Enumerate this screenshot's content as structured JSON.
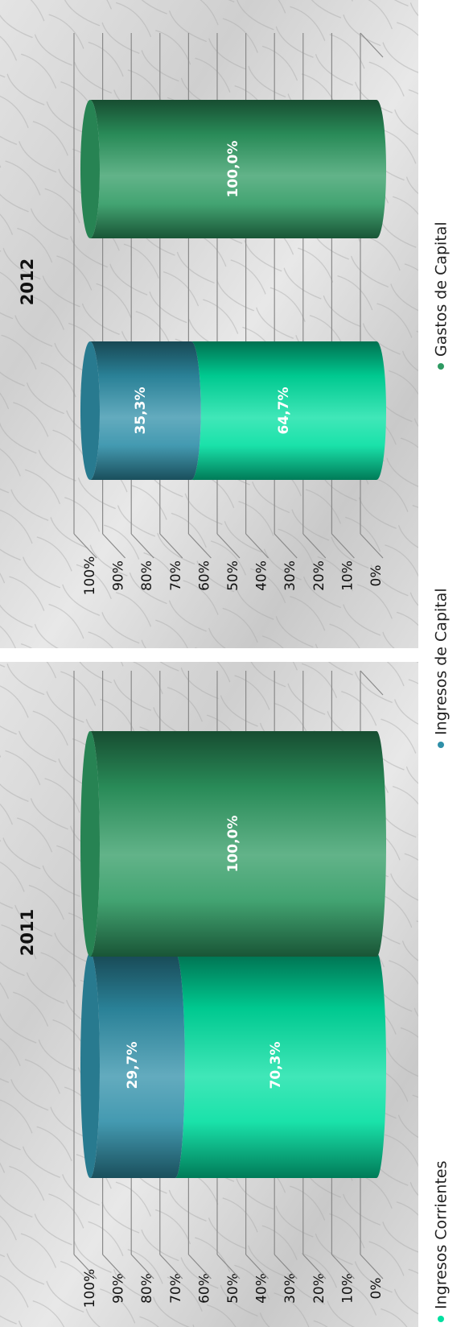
{
  "chart_data": [
    {
      "type": "bar",
      "stacked": true,
      "title": "2011",
      "categories": [
        null,
        null
      ],
      "series": [
        {
          "name": "Ingresos Corrientes",
          "color": "#00dfa0",
          "values": [
            70.3,
            null
          ],
          "value_labels": [
            "70,3%",
            null
          ]
        },
        {
          "name": "Ingresos de Capital",
          "color": "#2f8fa8",
          "values": [
            29.7,
            null
          ],
          "value_labels": [
            "29,7%",
            null
          ]
        },
        {
          "name": "Gastos de Capital",
          "color": "#2e9a62",
          "values": [
            null,
            100.0
          ],
          "value_labels": [
            null,
            "100,0%"
          ]
        }
      ],
      "ylim": [
        0,
        100
      ],
      "yticks": [
        {
          "value": 0,
          "label": "0%"
        },
        {
          "value": 10,
          "label": "10%"
        },
        {
          "value": 20,
          "label": "20%"
        },
        {
          "value": 30,
          "label": "30%"
        },
        {
          "value": 40,
          "label": "40%"
        },
        {
          "value": 50,
          "label": "50%"
        },
        {
          "value": 60,
          "label": "60%"
        },
        {
          "value": 70,
          "label": "70%"
        },
        {
          "value": 80,
          "label": "80%"
        },
        {
          "value": 90,
          "label": "90%"
        },
        {
          "value": 100,
          "label": "100%"
        }
      ],
      "grid": true,
      "legend": "bottom"
    },
    {
      "type": "bar",
      "stacked": true,
      "title": "2012",
      "categories": [
        null,
        null
      ],
      "series": [
        {
          "name": "Ingresos Corrientes",
          "color": "#00dfa0",
          "values": [
            64.7,
            null
          ],
          "value_labels": [
            "64,7%",
            null
          ]
        },
        {
          "name": "Ingresos de Capital",
          "color": "#2f8fa8",
          "values": [
            35.3,
            null
          ],
          "value_labels": [
            "35,3%",
            null
          ]
        },
        {
          "name": "Gastos de Capital",
          "color": "#2e9a62",
          "values": [
            null,
            100.0
          ],
          "value_labels": [
            null,
            "100,0%"
          ]
        }
      ],
      "ylim": [
        0,
        100
      ],
      "yticks": [
        {
          "value": 0,
          "label": "0%"
        },
        {
          "value": 10,
          "label": "10%"
        },
        {
          "value": 20,
          "label": "20%"
        },
        {
          "value": 30,
          "label": "30%"
        },
        {
          "value": 40,
          "label": "40%"
        },
        {
          "value": 50,
          "label": "50%"
        },
        {
          "value": 60,
          "label": "60%"
        },
        {
          "value": 70,
          "label": "70%"
        },
        {
          "value": 80,
          "label": "80%"
        },
        {
          "value": 90,
          "label": "90%"
        },
        {
          "value": 100,
          "label": "100%"
        }
      ],
      "grid": true,
      "legend": "bottom"
    }
  ]
}
